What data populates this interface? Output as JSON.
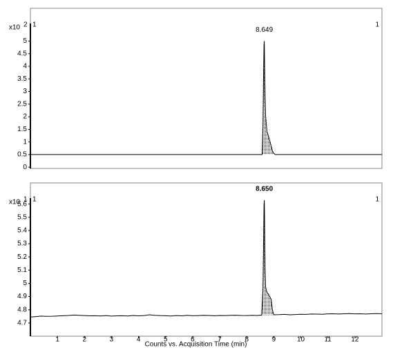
{
  "chart_data": [
    {
      "type": "line",
      "ylabel": "x10",
      "ylabel_exponent": "2",
      "corner_labels": [
        "1",
        "1"
      ],
      "xlim": [
        0,
        13
      ],
      "ylim": [
        -0.05,
        6.3
      ],
      "yticks": [
        0,
        0.5,
        1,
        1.5,
        2,
        2.5,
        3,
        3.5,
        4,
        4.5,
        5
      ],
      "peak": {
        "x": 8.649,
        "label": "8.649"
      },
      "series": [
        {
          "color": "#000000",
          "x": [
            0,
            8.57,
            8.6,
            8.62,
            8.64,
            8.649,
            8.66,
            8.68,
            8.7,
            8.75,
            8.8,
            8.85,
            8.9,
            8.95,
            9.0,
            9.05,
            13
          ],
          "values": [
            0.5,
            0.5,
            1.6,
            3.6,
            4.9,
            5.0,
            4.2,
            2.8,
            2.0,
            1.4,
            1.25,
            1.05,
            0.85,
            0.65,
            0.55,
            0.5,
            0.5
          ]
        }
      ]
    },
    {
      "type": "line",
      "ylabel": "x10",
      "ylabel_exponent": "1",
      "corner_labels": [
        "1",
        "1"
      ],
      "xlabel": "Counts vs. Acquisition Time (min)",
      "xlim": [
        0,
        13
      ],
      "xticks": [
        1,
        2,
        3,
        4,
        5,
        6,
        7,
        8,
        9,
        10,
        11,
        12
      ],
      "ylim": [
        4.6,
        5.76
      ],
      "yticks": [
        4.7,
        4.8,
        4.9,
        5,
        5.1,
        5.2,
        5.3,
        5.4,
        5.5,
        5.6
      ],
      "peak": {
        "x": 8.65,
        "label": "8.650"
      },
      "series": [
        {
          "color": "#000000",
          "x": [
            0,
            0.2,
            0.4,
            0.6,
            0.8,
            1,
            1.2,
            1.4,
            1.6,
            1.8,
            2,
            2.2,
            2.4,
            2.6,
            2.8,
            3,
            3.2,
            3.4,
            3.6,
            3.8,
            4,
            4.2,
            4.4,
            4.6,
            4.8,
            5,
            5.2,
            5.4,
            5.6,
            5.8,
            6,
            6.2,
            6.4,
            6.6,
            6.8,
            7,
            7.2,
            7.4,
            7.6,
            7.8,
            8,
            8.2,
            8.4,
            8.55,
            8.6,
            8.62,
            8.64,
            8.65,
            8.66,
            8.68,
            8.7,
            8.75,
            8.8,
            8.85,
            8.9,
            8.95,
            9.0,
            9.2,
            9.4,
            9.6,
            9.8,
            10,
            10.2,
            10.4,
            10.6,
            10.8,
            11,
            11.2,
            11.4,
            11.6,
            11.8,
            12,
            12.2,
            12.4,
            12.6,
            12.8,
            13
          ],
          "values": [
            4.745,
            4.748,
            4.752,
            4.75,
            4.751,
            4.753,
            4.755,
            4.757,
            4.76,
            4.758,
            4.756,
            4.754,
            4.755,
            4.753,
            4.756,
            4.752,
            4.754,
            4.755,
            4.753,
            4.757,
            4.754,
            4.756,
            4.762,
            4.758,
            4.756,
            4.755,
            4.753,
            4.756,
            4.754,
            4.758,
            4.755,
            4.756,
            4.758,
            4.757,
            4.755,
            4.757,
            4.756,
            4.758,
            4.759,
            4.757,
            4.756,
            4.758,
            4.757,
            4.76,
            4.95,
            5.3,
            5.6,
            5.63,
            5.5,
            5.1,
            4.97,
            4.93,
            4.92,
            4.9,
            4.88,
            4.8,
            4.762,
            4.763,
            4.765,
            4.762,
            4.764,
            4.766,
            4.765,
            4.768,
            4.767,
            4.766,
            4.769,
            4.77,
            4.768,
            4.77,
            4.771,
            4.769,
            4.77,
            4.768,
            4.77,
            4.771,
            4.77
          ]
        }
      ]
    }
  ]
}
